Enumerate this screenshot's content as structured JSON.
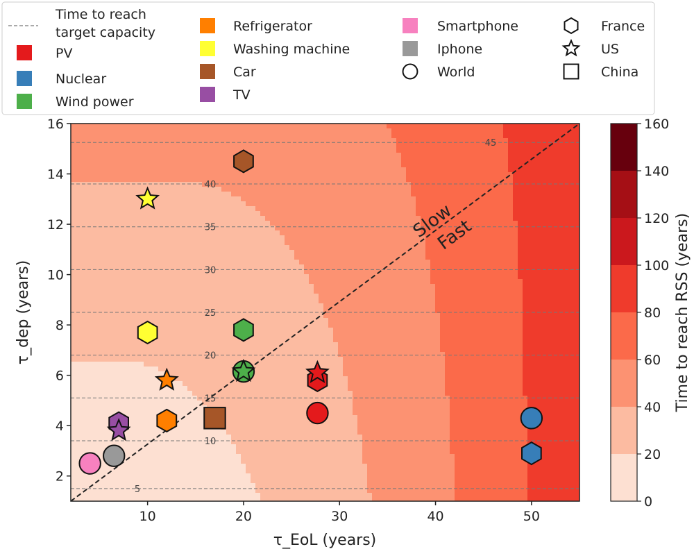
{
  "chart_data": {
    "type": "scatter",
    "xlabel": "τ_EoL (years)",
    "ylabel": "τ_dep (years)",
    "xlim": [
      2,
      55
    ],
    "ylim": [
      1,
      16
    ],
    "x_ticks": [
      10,
      20,
      30,
      40,
      50
    ],
    "y_ticks": [
      2,
      4,
      6,
      8,
      10,
      12,
      14,
      16
    ],
    "background_contour_legend": "Time to reach RSS (years)",
    "colorbar": {
      "label": "Time to reach RSS (years)",
      "ticks": [
        0,
        20,
        40,
        60,
        80,
        100,
        120,
        140,
        160
      ],
      "range": [
        0,
        160
      ],
      "colors": [
        "#fde0d2",
        "#fcbba1",
        "#fc9272",
        "#fb6a4a",
        "#ef3b2c",
        "#cb181d",
        "#a50f15",
        "#67000d"
      ]
    },
    "target_capacity_lines": {
      "legend": "Time to reach target capacity",
      "lines": [
        {
          "label": "5",
          "y": 1.5
        },
        {
          "label": "10",
          "y": 3.4
        },
        {
          "label": "15",
          "y": 5.1
        },
        {
          "label": "20",
          "y": 6.8
        },
        {
          "label": "25",
          "y": 8.5
        },
        {
          "label": "30",
          "y": 10.2
        },
        {
          "label": "35",
          "y": 11.9
        },
        {
          "label": "40",
          "y": 13.6
        },
        {
          "label": "45",
          "y": 15.25
        }
      ]
    },
    "diagonal": {
      "above": "Slow",
      "below": "Fast"
    },
    "technologies": [
      {
        "name": "PV",
        "color": "#e41a1c"
      },
      {
        "name": "Nuclear",
        "color": "#377eb8"
      },
      {
        "name": "Wind power",
        "color": "#4daf4a"
      },
      {
        "name": "Refrigerator",
        "color": "#ff7f00"
      },
      {
        "name": "Washing machine",
        "color": "#ffff33"
      },
      {
        "name": "Car",
        "color": "#a65628"
      },
      {
        "name": "TV",
        "color": "#984ea3"
      },
      {
        "name": "Smartphone",
        "color": "#f781bf"
      },
      {
        "name": "Iphone",
        "color": "#999999"
      }
    ],
    "regions": [
      {
        "name": "France",
        "marker": "hexagon"
      },
      {
        "name": "US",
        "marker": "star"
      },
      {
        "name": "World",
        "marker": "circle"
      },
      {
        "name": "China",
        "marker": "square"
      }
    ],
    "points": [
      {
        "tech": "Car",
        "region": "France",
        "x": 20,
        "y": 14.5
      },
      {
        "tech": "Washing machine",
        "region": "US",
        "x": 10,
        "y": 13
      },
      {
        "tech": "Washing machine",
        "region": "France",
        "x": 10,
        "y": 7.7
      },
      {
        "tech": "Wind power",
        "region": "France",
        "x": 20,
        "y": 7.8
      },
      {
        "tech": "Wind power",
        "region": "World",
        "x": 20,
        "y": 6.15
      },
      {
        "tech": "Wind power",
        "region": "US",
        "x": 20,
        "y": 6.15
      },
      {
        "tech": "Refrigerator",
        "region": "US",
        "x": 12,
        "y": 5.8
      },
      {
        "tech": "Refrigerator",
        "region": "France",
        "x": 12,
        "y": 4.2
      },
      {
        "tech": "PV",
        "region": "France",
        "x": 27.7,
        "y": 5.8
      },
      {
        "tech": "PV",
        "region": "US",
        "x": 27.7,
        "y": 6.1
      },
      {
        "tech": "PV",
        "region": "World",
        "x": 27.7,
        "y": 4.5
      },
      {
        "tech": "Car",
        "region": "China",
        "x": 17,
        "y": 4.3
      },
      {
        "tech": "TV",
        "region": "France",
        "x": 7,
        "y": 4.1
      },
      {
        "tech": "TV",
        "region": "US",
        "x": 7,
        "y": 3.8
      },
      {
        "tech": "Iphone",
        "region": "World",
        "x": 6.5,
        "y": 2.8
      },
      {
        "tech": "Smartphone",
        "region": "World",
        "x": 4,
        "y": 2.5
      },
      {
        "tech": "Nuclear",
        "region": "World",
        "x": 50,
        "y": 4.3
      },
      {
        "tech": "Nuclear",
        "region": "France",
        "x": 50,
        "y": 2.9
      }
    ]
  }
}
